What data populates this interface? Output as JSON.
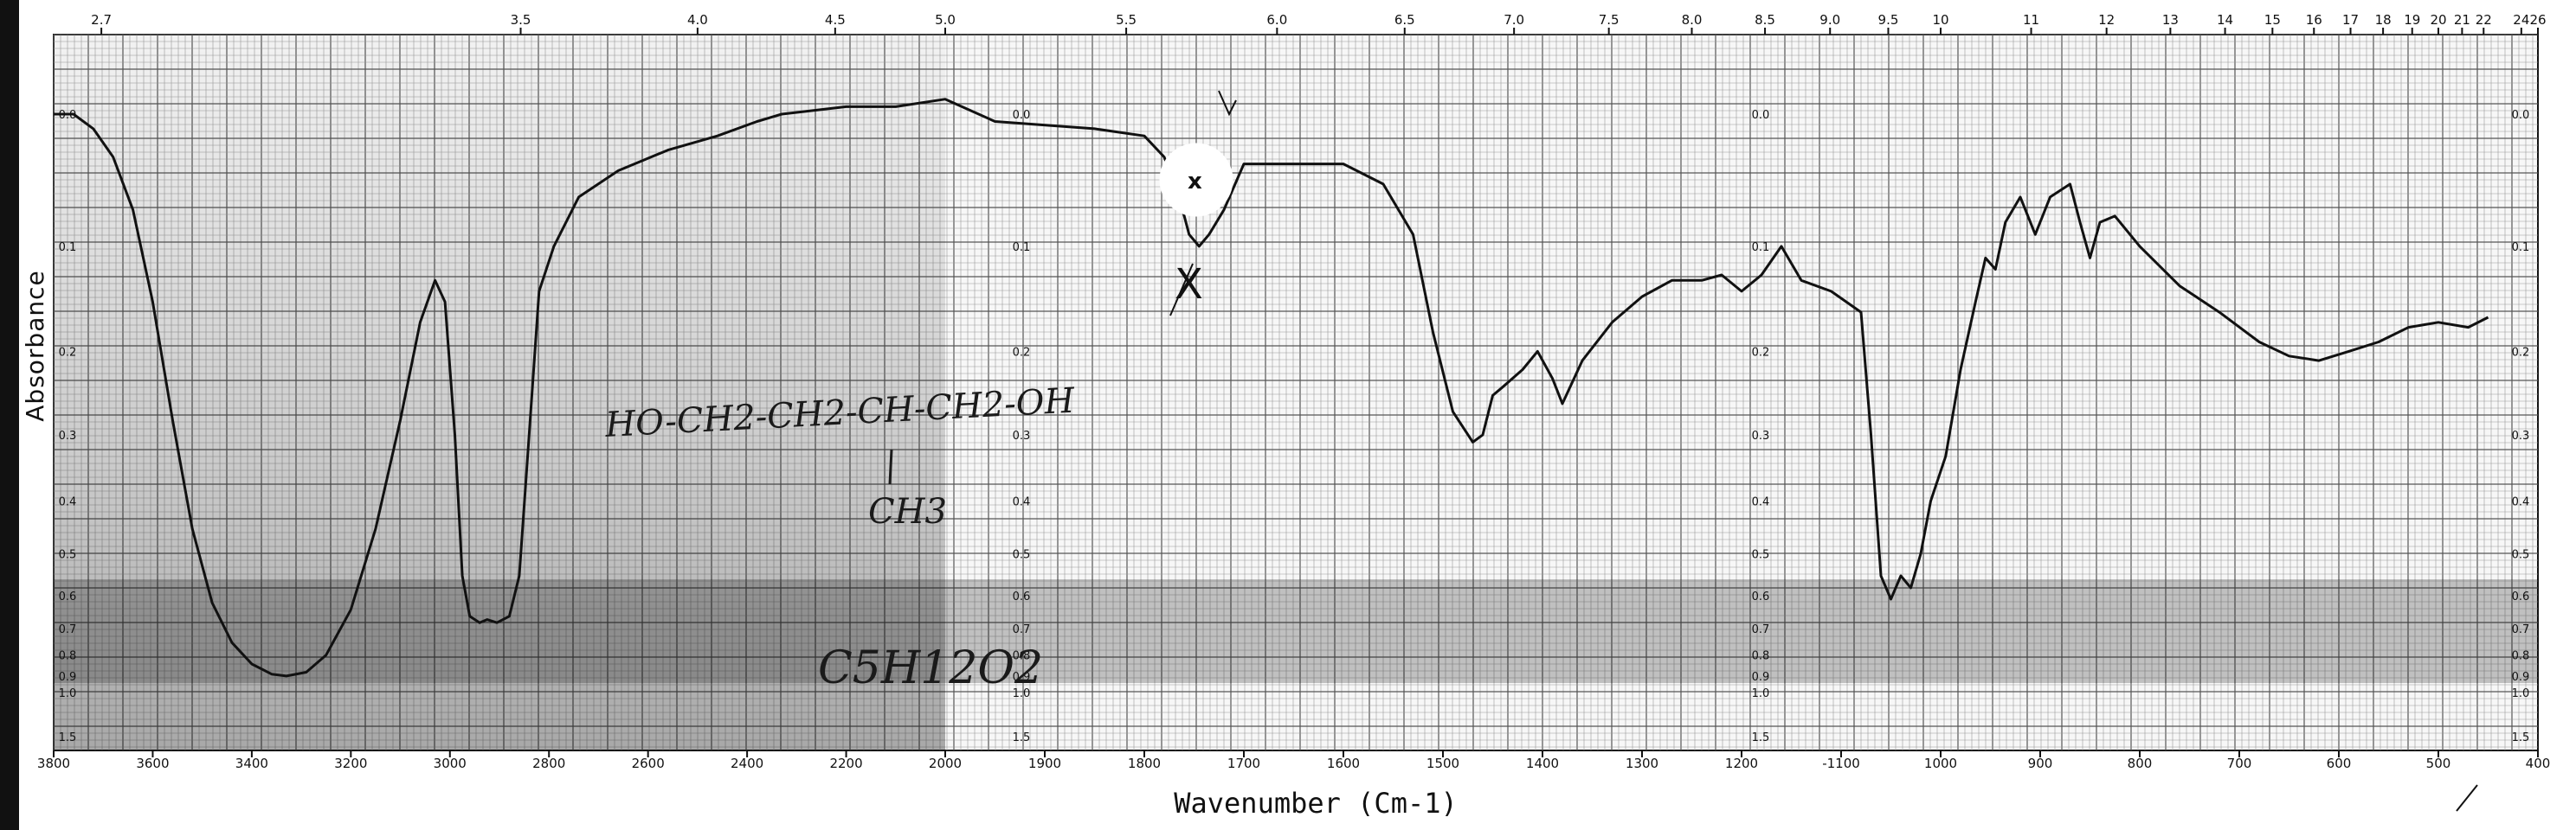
{
  "chart_data": {
    "type": "line",
    "title": "",
    "xlabel": "Wavenumber (Cm-1)",
    "ylabel": "Absorbance",
    "x_unit": "cm-1",
    "xlim": [
      3800,
      400
    ],
    "ylim": [
      0.0,
      1.5
    ],
    "grid": true,
    "bottom_ticks": [
      "3800",
      "3600",
      "3400",
      "3200",
      "3000",
      "2800",
      "2600",
      "2400",
      "2200",
      "2000",
      "1900",
      "1800",
      "1700",
      "1600",
      "1500",
      "1400",
      "1300",
      "1200",
      "-1100",
      "1000",
      "900",
      "800",
      "700",
      "600",
      "500",
      "400"
    ],
    "top_ticks": [
      "2.7",
      "3.5",
      "4.0",
      "4.5",
      "5.0",
      "5.5",
      "6.0",
      "6.5",
      "7.0",
      "7.5",
      "8.0",
      "8.5",
      "9.0",
      "9.5",
      "10",
      "11",
      "12",
      "13",
      "14",
      "15",
      "16",
      "17",
      "18",
      "19",
      "20",
      "21",
      "22",
      "24",
      "26"
    ],
    "absorbance_ticks": [
      "0.0",
      "0.1",
      "0.2",
      "0.3",
      "0.4",
      "0.5",
      "0.6",
      "0.7",
      "0.8",
      "0.9",
      "1.0",
      "1.5"
    ],
    "annotations": [
      {
        "text": "HO-CH2-CH2-CH-CH2-OH"
      },
      {
        "text": "CH3"
      },
      {
        "text": "C5H12O2"
      },
      {
        "text": "x"
      },
      {
        "text": "X"
      }
    ],
    "series": [
      {
        "values": [
          {
            "x": 3800,
            "y": 0.0
          },
          {
            "x": 3760,
            "y": 0.0
          },
          {
            "x": 3720,
            "y": 0.01
          },
          {
            "x": 3680,
            "y": 0.03
          },
          {
            "x": 3640,
            "y": 0.07
          },
          {
            "x": 3600,
            "y": 0.15
          },
          {
            "x": 3560,
            "y": 0.28
          },
          {
            "x": 3520,
            "y": 0.45
          },
          {
            "x": 3480,
            "y": 0.62
          },
          {
            "x": 3440,
            "y": 0.75
          },
          {
            "x": 3400,
            "y": 0.84
          },
          {
            "x": 3360,
            "y": 0.89
          },
          {
            "x": 3330,
            "y": 0.9
          },
          {
            "x": 3290,
            "y": 0.88
          },
          {
            "x": 3250,
            "y": 0.8
          },
          {
            "x": 3200,
            "y": 0.64
          },
          {
            "x": 3150,
            "y": 0.45
          },
          {
            "x": 3100,
            "y": 0.28
          },
          {
            "x": 3060,
            "y": 0.17
          },
          {
            "x": 3030,
            "y": 0.13
          },
          {
            "x": 3010,
            "y": 0.15
          },
          {
            "x": 2990,
            "y": 0.3
          },
          {
            "x": 2975,
            "y": 0.55
          },
          {
            "x": 2960,
            "y": 0.66
          },
          {
            "x": 2940,
            "y": 0.68
          },
          {
            "x": 2925,
            "y": 0.67
          },
          {
            "x": 2905,
            "y": 0.68
          },
          {
            "x": 2880,
            "y": 0.66
          },
          {
            "x": 2860,
            "y": 0.55
          },
          {
            "x": 2840,
            "y": 0.3
          },
          {
            "x": 2820,
            "y": 0.14
          },
          {
            "x": 2790,
            "y": 0.1
          },
          {
            "x": 2740,
            "y": 0.06
          },
          {
            "x": 2660,
            "y": 0.04
          },
          {
            "x": 2560,
            "y": 0.025
          },
          {
            "x": 2460,
            "y": 0.015
          },
          {
            "x": 2380,
            "y": 0.005
          },
          {
            "x": 2330,
            "y": 0.0
          },
          {
            "x": 2200,
            "y": -0.005
          },
          {
            "x": 2100,
            "y": -0.005
          },
          {
            "x": 2000,
            "y": -0.01
          },
          {
            "x": 1950,
            "y": 0.005
          },
          {
            "x": 1850,
            "y": 0.01
          },
          {
            "x": 1800,
            "y": 0.015
          },
          {
            "x": 1780,
            "y": 0.03
          },
          {
            "x": 1765,
            "y": 0.06
          },
          {
            "x": 1755,
            "y": 0.09
          },
          {
            "x": 1745,
            "y": 0.1
          },
          {
            "x": 1735,
            "y": 0.09
          },
          {
            "x": 1720,
            "y": 0.07
          },
          {
            "x": 1700,
            "y": 0.035
          },
          {
            "x": 1650,
            "y": 0.035
          },
          {
            "x": 1600,
            "y": 0.035
          },
          {
            "x": 1560,
            "y": 0.05
          },
          {
            "x": 1530,
            "y": 0.09
          },
          {
            "x": 1510,
            "y": 0.18
          },
          {
            "x": 1490,
            "y": 0.27
          },
          {
            "x": 1470,
            "y": 0.31
          },
          {
            "x": 1460,
            "y": 0.3
          },
          {
            "x": 1450,
            "y": 0.25
          },
          {
            "x": 1440,
            "y": 0.24
          },
          {
            "x": 1420,
            "y": 0.22
          },
          {
            "x": 1405,
            "y": 0.2
          },
          {
            "x": 1390,
            "y": 0.23
          },
          {
            "x": 1380,
            "y": 0.26
          },
          {
            "x": 1360,
            "y": 0.21
          },
          {
            "x": 1330,
            "y": 0.17
          },
          {
            "x": 1300,
            "y": 0.145
          },
          {
            "x": 1270,
            "y": 0.13
          },
          {
            "x": 1240,
            "y": 0.13
          },
          {
            "x": 1220,
            "y": 0.125
          },
          {
            "x": 1200,
            "y": 0.14
          },
          {
            "x": 1180,
            "y": 0.125
          },
          {
            "x": 1160,
            "y": 0.1
          },
          {
            "x": 1140,
            "y": 0.13
          },
          {
            "x": 1110,
            "y": 0.14
          },
          {
            "x": 1080,
            "y": 0.16
          },
          {
            "x": 1070,
            "y": 0.3
          },
          {
            "x": 1060,
            "y": 0.55
          },
          {
            "x": 1050,
            "y": 0.61
          },
          {
            "x": 1040,
            "y": 0.55
          },
          {
            "x": 1030,
            "y": 0.58
          },
          {
            "x": 1020,
            "y": 0.5
          },
          {
            "x": 1010,
            "y": 0.4
          },
          {
            "x": 995,
            "y": 0.33
          },
          {
            "x": 980,
            "y": 0.22
          },
          {
            "x": 965,
            "y": 0.15
          },
          {
            "x": 955,
            "y": 0.11
          },
          {
            "x": 945,
            "y": 0.12
          },
          {
            "x": 935,
            "y": 0.08
          },
          {
            "x": 920,
            "y": 0.06
          },
          {
            "x": 905,
            "y": 0.09
          },
          {
            "x": 890,
            "y": 0.06
          },
          {
            "x": 870,
            "y": 0.05
          },
          {
            "x": 860,
            "y": 0.08
          },
          {
            "x": 850,
            "y": 0.11
          },
          {
            "x": 840,
            "y": 0.08
          },
          {
            "x": 825,
            "y": 0.075
          },
          {
            "x": 800,
            "y": 0.1
          },
          {
            "x": 760,
            "y": 0.135
          },
          {
            "x": 720,
            "y": 0.16
          },
          {
            "x": 680,
            "y": 0.19
          },
          {
            "x": 650,
            "y": 0.205
          },
          {
            "x": 620,
            "y": 0.21
          },
          {
            "x": 590,
            "y": 0.2
          },
          {
            "x": 560,
            "y": 0.19
          },
          {
            "x": 530,
            "y": 0.175
          },
          {
            "x": 500,
            "y": 0.17
          },
          {
            "x": 470,
            "y": 0.175
          },
          {
            "x": 450,
            "y": 0.165
          }
        ]
      }
    ]
  }
}
